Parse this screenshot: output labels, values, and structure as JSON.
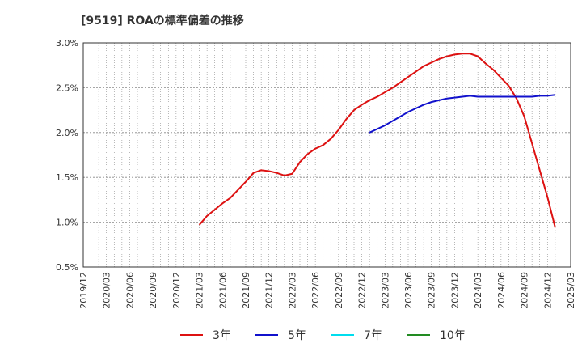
{
  "chart_data": {
    "type": "line",
    "title": "[9519]  ROAの標準偏差の推移",
    "xlabel": "",
    "ylabel": "",
    "ylim": [
      0.5,
      3.0
    ],
    "x_range": [
      "2019/12",
      "2025/03"
    ],
    "grid": true,
    "legend_position": "bottom",
    "y_ticks": [
      "3.0%",
      "2.5%",
      "2.0%",
      "1.5%",
      "1.0%",
      "0.5%"
    ],
    "y_tick_values": [
      3.0,
      2.5,
      2.0,
      1.5,
      1.0,
      0.5
    ],
    "x_ticks": [
      "2019/12",
      "2020/03",
      "2020/06",
      "2020/09",
      "2020/12",
      "2021/03",
      "2021/06",
      "2021/09",
      "2021/12",
      "2022/03",
      "2022/06",
      "2022/09",
      "2022/12",
      "2023/03",
      "2023/06",
      "2023/09",
      "2023/12",
      "2024/03",
      "2024/06",
      "2024/09",
      "2024/12",
      "2025/03"
    ],
    "series": [
      {
        "name": "3年",
        "color": "#dd1111",
        "points": [
          [
            "2021/03",
            0.97
          ],
          [
            "2021/04",
            1.07
          ],
          [
            "2021/05",
            1.14
          ],
          [
            "2021/06",
            1.21
          ],
          [
            "2021/07",
            1.27
          ],
          [
            "2021/08",
            1.36
          ],
          [
            "2021/09",
            1.45
          ],
          [
            "2021/10",
            1.55
          ],
          [
            "2021/11",
            1.58
          ],
          [
            "2021/12",
            1.57
          ],
          [
            "2022/01",
            1.55
          ],
          [
            "2022/02",
            1.52
          ],
          [
            "2022/03",
            1.54
          ],
          [
            "2022/04",
            1.67
          ],
          [
            "2022/05",
            1.76
          ],
          [
            "2022/06",
            1.82
          ],
          [
            "2022/07",
            1.86
          ],
          [
            "2022/08",
            1.93
          ],
          [
            "2022/09",
            2.03
          ],
          [
            "2022/10",
            2.15
          ],
          [
            "2022/11",
            2.25
          ],
          [
            "2022/12",
            2.31
          ],
          [
            "2023/01",
            2.36
          ],
          [
            "2023/02",
            2.4
          ],
          [
            "2023/03",
            2.45
          ],
          [
            "2023/04",
            2.5
          ],
          [
            "2023/05",
            2.56
          ],
          [
            "2023/06",
            2.62
          ],
          [
            "2023/07",
            2.68
          ],
          [
            "2023/08",
            2.74
          ],
          [
            "2023/09",
            2.78
          ],
          [
            "2023/10",
            2.82
          ],
          [
            "2023/11",
            2.85
          ],
          [
            "2023/12",
            2.87
          ],
          [
            "2024/01",
            2.88
          ],
          [
            "2024/02",
            2.88
          ],
          [
            "2024/03",
            2.85
          ],
          [
            "2024/04",
            2.77
          ],
          [
            "2024/05",
            2.7
          ],
          [
            "2024/06",
            2.61
          ],
          [
            "2024/07",
            2.52
          ],
          [
            "2024/08",
            2.38
          ],
          [
            "2024/09",
            2.18
          ],
          [
            "2024/10",
            1.88
          ],
          [
            "2024/11",
            1.58
          ],
          [
            "2024/12",
            1.28
          ],
          [
            "2025/01",
            0.94
          ]
        ]
      },
      {
        "name": "5年",
        "color": "#1111cc",
        "points": [
          [
            "2023/01",
            2.0
          ],
          [
            "2023/02",
            2.04
          ],
          [
            "2023/03",
            2.08
          ],
          [
            "2023/04",
            2.13
          ],
          [
            "2023/05",
            2.18
          ],
          [
            "2023/06",
            2.23
          ],
          [
            "2023/07",
            2.27
          ],
          [
            "2023/08",
            2.31
          ],
          [
            "2023/09",
            2.34
          ],
          [
            "2023/10",
            2.36
          ],
          [
            "2023/11",
            2.38
          ],
          [
            "2023/12",
            2.39
          ],
          [
            "2024/01",
            2.4
          ],
          [
            "2024/02",
            2.41
          ],
          [
            "2024/03",
            2.4
          ],
          [
            "2024/04",
            2.4
          ],
          [
            "2024/05",
            2.4
          ],
          [
            "2024/06",
            2.4
          ],
          [
            "2024/07",
            2.4
          ],
          [
            "2024/08",
            2.4
          ],
          [
            "2024/09",
            2.4
          ],
          [
            "2024/10",
            2.4
          ],
          [
            "2024/11",
            2.41
          ],
          [
            "2024/12",
            2.41
          ],
          [
            "2025/01",
            2.42
          ]
        ]
      },
      {
        "name": "7年",
        "color": "#00ddee",
        "points": []
      },
      {
        "name": "10年",
        "color": "#228b22",
        "points": []
      }
    ]
  }
}
